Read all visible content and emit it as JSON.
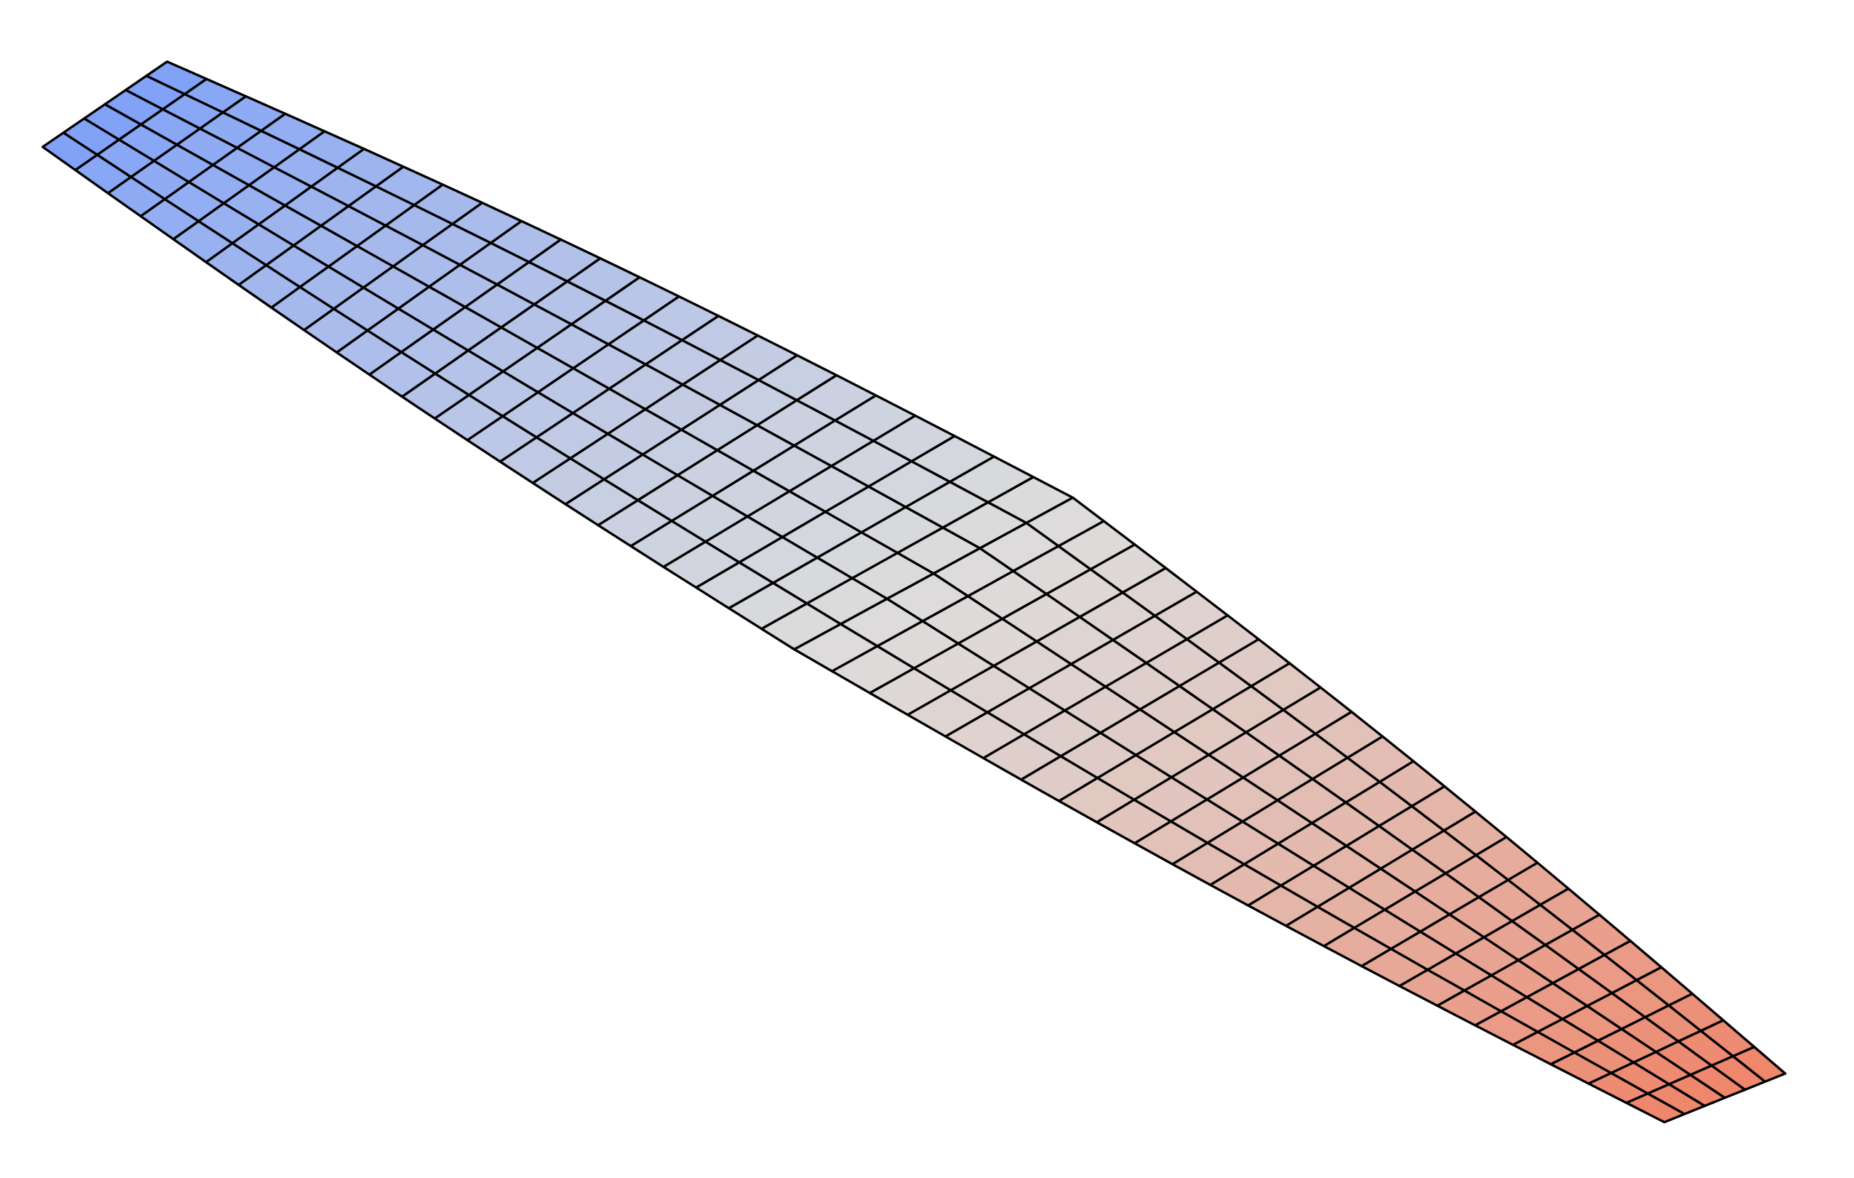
{
  "figure": {
    "kind": "deformed-mesh-surface",
    "description_visible_text": "",
    "grid": {
      "rows": 6,
      "columns": 46
    },
    "colormap": {
      "name": "coolwarm",
      "low_color": "#7b9ff9",
      "mid_color": "#dddcdc",
      "high_color": "#ee8468"
    },
    "edge_color": "#000000",
    "background": "#ffffff"
  }
}
